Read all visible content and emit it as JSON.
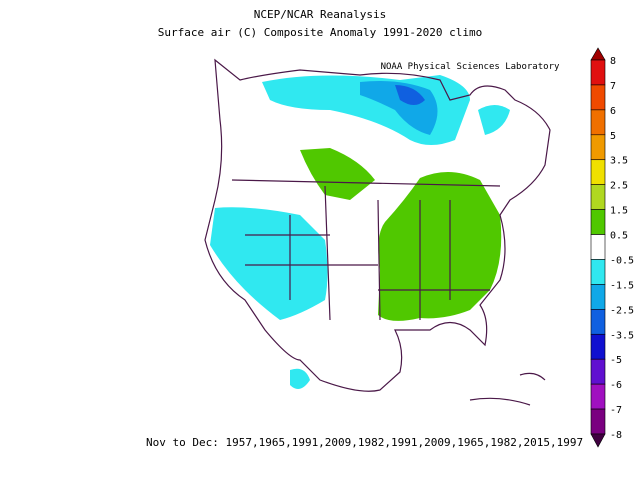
{
  "header": {
    "title": "NCEP/NCAR Reanalysis",
    "subtitle": "Surface air (C) Composite Anomaly 1991-2020 climo",
    "credit": "NOAA Physical Sciences Laboratory"
  },
  "colorbar": {
    "labels": [
      8,
      7,
      6,
      5,
      3.5,
      2.5,
      1.5,
      0.5,
      -0.5,
      -1.5,
      -2.5,
      -3.5,
      -5,
      -6,
      -7,
      -8
    ],
    "colors": [
      "#a00000",
      "#e01010",
      "#f04a00",
      "#f07000",
      "#f09a00",
      "#f0e000",
      "#b0d820",
      "#50c800",
      "#ffffff",
      "#30e8f0",
      "#10a8e8",
      "#1060e0",
      "#1010d0",
      "#6010d0",
      "#a010c0",
      "#7a0080",
      "#400040"
    ]
  },
  "footer": {
    "text": "Nov to Dec: 1957,1965,1991,2009,1982,1991,2009,1965,1982,2015,1997"
  }
}
